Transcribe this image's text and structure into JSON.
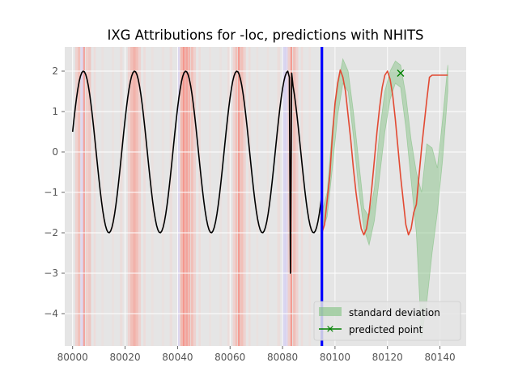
{
  "chart_data": {
    "type": "line",
    "title": "IXG Attributions for -loc, predictions with NHITS",
    "xlabel": "",
    "ylabel": "",
    "xlim": [
      79997,
      80150
    ],
    "ylim": [
      -4.8,
      2.6
    ],
    "x_ticks": [
      "80000",
      "80020",
      "80040",
      "80060",
      "80080",
      "80100",
      "80120",
      "80140"
    ],
    "y_ticks": [
      "2",
      "1",
      "0",
      "−1",
      "−2",
      "−3",
      "−4"
    ],
    "grid": true,
    "legend_position": "lower-right",
    "history": {
      "x_start": 80000,
      "x_end": 80095,
      "amplitude": 2,
      "period": 19.5,
      "phase_start": 0.5,
      "spike": {
        "x": 80083,
        "y": -3.0
      },
      "color": "#000000"
    },
    "forecast_start": 80095,
    "forecast_end": 80143,
    "cutoff_line": {
      "x": 80095,
      "color": "#0000ff"
    },
    "forecast": {
      "x": [
        80095,
        80096,
        80097,
        80098,
        80099,
        80100,
        80101,
        80102,
        80103,
        80104,
        80105,
        80106,
        80107,
        80108,
        80109,
        80110,
        80111,
        80112,
        80113,
        80114,
        80115,
        80116,
        80117,
        80118,
        80119,
        80120,
        80121,
        80122,
        80123,
        80124,
        80125,
        80126,
        80127,
        80128,
        80129,
        80130,
        80131,
        80132,
        80133,
        80134,
        80135,
        80136,
        80137,
        80138,
        80139,
        80140,
        80141,
        80142,
        80143
      ],
      "y": [
        -2.0,
        -1.8,
        -1.2,
        -0.6,
        0.4,
        1.2,
        1.7,
        2.03,
        1.85,
        1.5,
        0.9,
        0.3,
        -0.4,
        -1.0,
        -1.5,
        -1.9,
        -2.05,
        -1.9,
        -1.5,
        -0.9,
        -0.2,
        0.5,
        1.1,
        1.6,
        1.9,
        2.0,
        1.8,
        1.4,
        0.8,
        0.1,
        -0.6,
        -1.2,
        -1.8,
        -2.05,
        -1.9,
        -1.5,
        -1.3,
        -0.6,
        0.1,
        0.7,
        1.3,
        1.85,
        1.9,
        1.9,
        1.9,
        1.9,
        1.9,
        1.9,
        1.9
      ],
      "color": "#e24a33"
    },
    "series": [
      {
        "name": "standard deviation",
        "color": "#7fbf7f"
      },
      {
        "name": "predicted point",
        "color": "#008000",
        "marker": "x",
        "x": 80125,
        "y": 1.95
      }
    ],
    "std_band": {
      "x": [
        80095,
        80097,
        80099,
        80101,
        80103,
        80105,
        80107,
        80109,
        80111,
        80113,
        80115,
        80117,
        80119,
        80121,
        80123,
        80125,
        80127,
        80129,
        80131,
        80133,
        80135,
        80137,
        80139,
        80141,
        80143
      ],
      "upper": [
        -1.5,
        -1.0,
        0.6,
        1.6,
        2.3,
        2.0,
        1.0,
        -0.2,
        -1.4,
        -1.6,
        -0.9,
        0.5,
        1.5,
        2.0,
        2.25,
        2.15,
        1.4,
        0.3,
        -0.5,
        -1.0,
        0.2,
        0.1,
        -0.4,
        0.8,
        2.15
      ],
      "lower": [
        -2.0,
        -1.6,
        -0.4,
        0.9,
        1.7,
        1.5,
        0.4,
        -0.9,
        -1.9,
        -2.3,
        -1.7,
        -0.6,
        0.5,
        1.3,
        1.7,
        1.6,
        0.6,
        -0.7,
        -2.0,
        -4.6,
        -3.7,
        -2.5,
        -1.5,
        -0.2,
        1.5
      ]
    },
    "attribution_spans": [
      {
        "x": 80001,
        "w": 1.0,
        "c": "#ffb0a8",
        "o": 0.35
      },
      {
        "x": 80002,
        "w": 0.9,
        "c": "#ff9080",
        "o": 0.45
      },
      {
        "x": 80003,
        "w": 1.2,
        "c": "#d0c0ff",
        "o": 0.35
      },
      {
        "x": 80004,
        "w": 0.7,
        "c": "#ff7060",
        "o": 0.55
      },
      {
        "x": 80005,
        "w": 1.0,
        "c": "#ffb0a8",
        "o": 0.4
      },
      {
        "x": 80006,
        "w": 1.0,
        "c": "#ff9080",
        "o": 0.35
      },
      {
        "x": 80008,
        "w": 0.8,
        "c": "#ffc8c0",
        "o": 0.3
      },
      {
        "x": 80011,
        "w": 0.8,
        "c": "#ffd0c8",
        "o": 0.2
      },
      {
        "x": 80015,
        "w": 0.8,
        "c": "#ffd0c8",
        "o": 0.2
      },
      {
        "x": 80018,
        "w": 1.0,
        "c": "#ffc8c0",
        "o": 0.25
      },
      {
        "x": 80021,
        "w": 1.0,
        "c": "#ffb0a8",
        "o": 0.35
      },
      {
        "x": 80022,
        "w": 1.0,
        "c": "#ff9080",
        "o": 0.45
      },
      {
        "x": 80023,
        "w": 1.0,
        "c": "#ff8070",
        "o": 0.5
      },
      {
        "x": 80024,
        "w": 1.0,
        "c": "#ff9080",
        "o": 0.45
      },
      {
        "x": 80025,
        "w": 1.0,
        "c": "#ffb0a8",
        "o": 0.35
      },
      {
        "x": 80027,
        "w": 0.8,
        "c": "#ffc8c0",
        "o": 0.3
      },
      {
        "x": 80030,
        "w": 0.8,
        "c": "#ffd0c8",
        "o": 0.2
      },
      {
        "x": 80034,
        "w": 0.8,
        "c": "#ffd0c8",
        "o": 0.2
      },
      {
        "x": 80037,
        "w": 1.0,
        "c": "#ffc8c0",
        "o": 0.25
      },
      {
        "x": 80040,
        "w": 0.8,
        "c": "#d0c0ff",
        "o": 0.4
      },
      {
        "x": 80041,
        "w": 1.0,
        "c": "#ff9080",
        "o": 0.5
      },
      {
        "x": 80042,
        "w": 0.8,
        "c": "#ff6050",
        "o": 0.6
      },
      {
        "x": 80043,
        "w": 0.9,
        "c": "#ff7060",
        "o": 0.55
      },
      {
        "x": 80044,
        "w": 0.8,
        "c": "#ff8070",
        "o": 0.5
      },
      {
        "x": 80045,
        "w": 1.0,
        "c": "#ff9080",
        "o": 0.45
      },
      {
        "x": 80046,
        "w": 1.0,
        "c": "#ffb0a8",
        "o": 0.35
      },
      {
        "x": 80048,
        "w": 0.8,
        "c": "#ffc8c0",
        "o": 0.3
      },
      {
        "x": 80052,
        "w": 0.8,
        "c": "#ffd0c8",
        "o": 0.2
      },
      {
        "x": 80056,
        "w": 0.8,
        "c": "#ffd0c8",
        "o": 0.2
      },
      {
        "x": 80059,
        "w": 1.0,
        "c": "#ffc8c0",
        "o": 0.25
      },
      {
        "x": 80061,
        "w": 1.0,
        "c": "#ffb0a8",
        "o": 0.35
      },
      {
        "x": 80062,
        "w": 0.8,
        "c": "#ff9080",
        "o": 0.45
      },
      {
        "x": 80063,
        "w": 0.8,
        "c": "#ff6050",
        "o": 0.55
      },
      {
        "x": 80064,
        "w": 1.0,
        "c": "#ff9080",
        "o": 0.45
      },
      {
        "x": 80065,
        "w": 1.0,
        "c": "#ffb0a8",
        "o": 0.35
      },
      {
        "x": 80067,
        "w": 0.8,
        "c": "#ffc8c0",
        "o": 0.3
      },
      {
        "x": 80070,
        "w": 0.8,
        "c": "#ffd0c8",
        "o": 0.2
      },
      {
        "x": 80074,
        "w": 0.8,
        "c": "#ffd0c8",
        "o": 0.2
      },
      {
        "x": 80078,
        "w": 1.0,
        "c": "#ffc8c0",
        "o": 0.25
      },
      {
        "x": 80080,
        "w": 1.2,
        "c": "#c8c0ff",
        "o": 0.4
      },
      {
        "x": 80081,
        "w": 1.0,
        "c": "#d0c0ff",
        "o": 0.35
      },
      {
        "x": 80082,
        "w": 1.0,
        "c": "#ffb0a8",
        "o": 0.4
      },
      {
        "x": 80083,
        "w": 0.7,
        "c": "#ff6050",
        "o": 0.55
      },
      {
        "x": 80084,
        "w": 1.0,
        "c": "#ff9080",
        "o": 0.45
      },
      {
        "x": 80085,
        "w": 1.0,
        "c": "#ffb0a8",
        "o": 0.35
      },
      {
        "x": 80087,
        "w": 0.8,
        "c": "#ffc8c0",
        "o": 0.3
      },
      {
        "x": 80090,
        "w": 0.8,
        "c": "#ffd0c8",
        "o": 0.2
      }
    ]
  }
}
